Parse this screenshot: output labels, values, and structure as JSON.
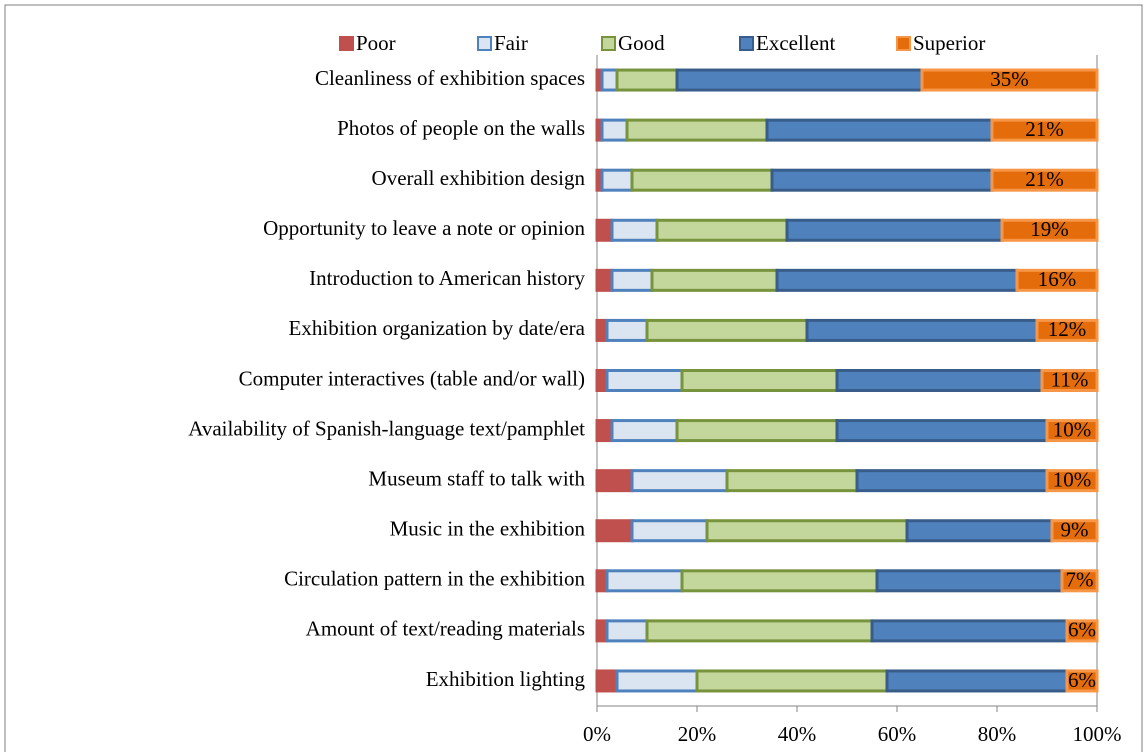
{
  "chart_data": {
    "type": "stacked_bar_horizontal",
    "categories": [
      "Cleanliness of exhibition spaces",
      "Photos of people on the walls",
      "Overall exhibition design",
      "Opportunity to leave a note or opinion",
      "Introduction to American history",
      "Exhibition organization by date/era",
      "Computer interactives (table and/or wall)",
      "Availability of Spanish-language text/pamphlet",
      "Museum staff to talk with",
      "Music in the exhibition",
      "Circulation pattern in the exhibition",
      "Amount of text/reading materials",
      "Exhibition lighting"
    ],
    "series": [
      {
        "name": "Poor",
        "color": "#c0504d",
        "stroke": "#c0504d",
        "values": [
          1,
          1,
          1,
          3,
          3,
          2,
          2,
          3,
          7,
          7,
          2,
          2,
          4
        ]
      },
      {
        "name": "Fair",
        "color": "#dbe5f1",
        "stroke": "#4f81bd",
        "values": [
          3,
          5,
          6,
          9,
          8,
          8,
          15,
          13,
          19,
          15,
          15,
          8,
          16
        ]
      },
      {
        "name": "Good",
        "color": "#c3d69b",
        "stroke": "#77933c",
        "values": [
          12,
          28,
          28,
          26,
          25,
          32,
          31,
          32,
          26,
          40,
          39,
          45,
          38
        ]
      },
      {
        "name": "Excellent",
        "color": "#4f81bd",
        "stroke": "#385d8a",
        "values": [
          49,
          45,
          44,
          43,
          48,
          46,
          41,
          42,
          38,
          29,
          37,
          39,
          36
        ]
      },
      {
        "name": "Superior",
        "color": "#e46c0a",
        "stroke": "#f79646",
        "values": [
          35,
          21,
          21,
          19,
          16,
          12,
          11,
          10,
          10,
          9,
          7,
          6,
          6
        ],
        "value_labels": [
          "35%",
          "21%",
          "21%",
          "19%",
          "16%",
          "12%",
          "11%",
          "10%",
          "10%",
          "9%",
          "7%",
          "6%",
          "6%"
        ]
      }
    ],
    "xlim": [
      0,
      100
    ],
    "xticks": [
      {
        "value": 0,
        "label": "0%"
      },
      {
        "value": 20,
        "label": "20%"
      },
      {
        "value": 40,
        "label": "40%"
      },
      {
        "value": 60,
        "label": "60%"
      },
      {
        "value": 80,
        "label": "80%"
      },
      {
        "value": 100,
        "label": "100%"
      }
    ],
    "legend": "top"
  }
}
